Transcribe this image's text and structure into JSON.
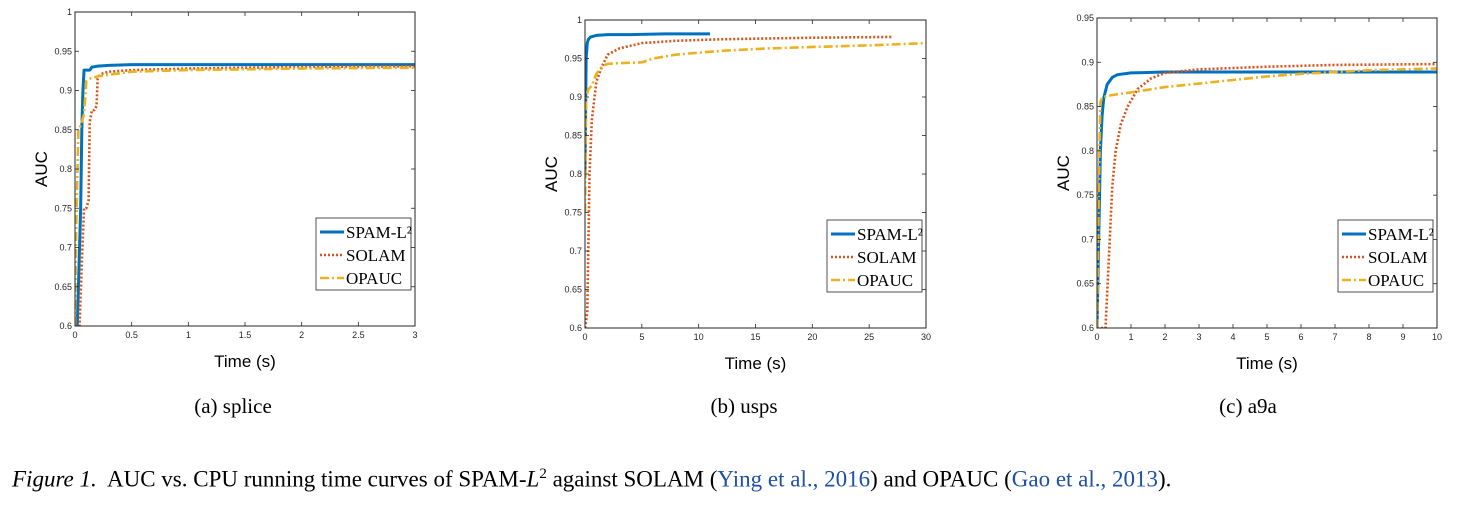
{
  "colors": {
    "spam": "#0072BD",
    "solam": "#D95319",
    "opauc": "#EDB120"
  },
  "legend_labels": [
    "SPAM-L²",
    "SOLAM",
    "OPAUC"
  ],
  "chart_data": [
    {
      "type": "line",
      "subcaption": "(a)  splice",
      "xlabel": "Time (s)",
      "ylabel": "AUC",
      "xlim": [
        0,
        3
      ],
      "ylim": [
        0.6,
        1
      ],
      "xticks": [
        0,
        0.5,
        1,
        1.5,
        2,
        2.5,
        3
      ],
      "xtick_labels": [
        "0",
        "0.5",
        "1",
        "1.5",
        "2",
        "2.5",
        "3"
      ],
      "yticks": [
        0.6,
        0.65,
        0.7,
        0.75,
        0.8,
        0.85,
        0.9,
        0.95,
        1
      ],
      "ytick_labels": [
        "0.6",
        "0.65",
        "0.7",
        "0.75",
        "0.8",
        "0.85",
        "0.9",
        "0.95",
        "1"
      ],
      "grid": false,
      "legend_position": "bottom-right",
      "series": [
        {
          "name": "SPAM-L²",
          "style": "solid",
          "x": [
            0,
            0.02,
            0.05,
            0.06,
            0.07,
            0.08,
            0.13,
            0.15,
            0.16,
            0.2,
            0.3,
            0.5,
            1,
            2,
            3
          ],
          "y": [
            0.6,
            0.6,
            0.75,
            0.85,
            0.9,
            0.926,
            0.926,
            0.93,
            0.93,
            0.931,
            0.932,
            0.933,
            0.933,
            0.933,
            0.933
          ]
        },
        {
          "name": "SOLAM",
          "style": "dotted",
          "x": [
            0,
            0.04,
            0.06,
            0.08,
            0.1,
            0.12,
            0.13,
            0.15,
            0.17,
            0.19,
            0.2,
            0.22,
            0.25,
            0.3,
            0.5,
            1,
            2,
            3
          ],
          "y": [
            0.6,
            0.6,
            0.68,
            0.75,
            0.75,
            0.76,
            0.86,
            0.875,
            0.875,
            0.88,
            0.915,
            0.92,
            0.922,
            0.924,
            0.926,
            0.928,
            0.93,
            0.931
          ]
        },
        {
          "name": "OPAUC",
          "style": "dashdot",
          "x": [
            0,
            0.01,
            0.03,
            0.05,
            0.06,
            0.08,
            0.1,
            0.13,
            0.2,
            0.3,
            0.5,
            1,
            2,
            3
          ],
          "y": [
            0.6,
            0.72,
            0.85,
            0.855,
            0.86,
            0.87,
            0.912,
            0.915,
            0.918,
            0.92,
            0.924,
            0.926,
            0.928,
            0.929
          ]
        }
      ]
    },
    {
      "type": "line",
      "subcaption": "(b)  usps",
      "xlabel": "Time (s)",
      "ylabel": "AUC",
      "xlim": [
        0,
        30
      ],
      "ylim": [
        0.6,
        1
      ],
      "xticks": [
        0,
        5,
        10,
        15,
        20,
        25,
        30
      ],
      "xtick_labels": [
        "0",
        "5",
        "10",
        "15",
        "20",
        "25",
        "30"
      ],
      "yticks": [
        0.6,
        0.65,
        0.7,
        0.75,
        0.8,
        0.85,
        0.9,
        0.95,
        1
      ],
      "ytick_labels": [
        "0.6",
        "0.65",
        "0.7",
        "0.75",
        "0.8",
        "0.85",
        "0.9",
        "0.95",
        "1"
      ],
      "grid": false,
      "legend_position": "bottom-right",
      "series": [
        {
          "name": "SPAM-L²",
          "style": "solid",
          "x": [
            0,
            0.1,
            0.2,
            0.3,
            0.5,
            1,
            2,
            4,
            7,
            11
          ],
          "y": [
            0.8,
            0.95,
            0.97,
            0.975,
            0.978,
            0.98,
            0.981,
            0.981,
            0.982,
            0.982
          ]
        },
        {
          "name": "SOLAM",
          "style": "dotted",
          "x": [
            0,
            0.2,
            0.4,
            0.6,
            1,
            1.5,
            2,
            3,
            5,
            8,
            12,
            20,
            27
          ],
          "y": [
            0.6,
            0.62,
            0.8,
            0.87,
            0.92,
            0.94,
            0.955,
            0.963,
            0.97,
            0.973,
            0.975,
            0.977,
            0.978
          ]
        },
        {
          "name": "OPAUC",
          "style": "dashdot",
          "x": [
            0,
            0.1,
            0.3,
            0.6,
            1,
            1.5,
            2,
            3,
            5,
            6,
            8,
            12,
            16,
            20,
            25,
            30
          ],
          "y": [
            0.75,
            0.9,
            0.91,
            0.915,
            0.93,
            0.94,
            0.943,
            0.944,
            0.945,
            0.95,
            0.955,
            0.96,
            0.963,
            0.965,
            0.967,
            0.97
          ]
        }
      ]
    },
    {
      "type": "line",
      "subcaption": "(c)  a9a",
      "xlabel": "Time (s)",
      "ylabel": "AUC",
      "xlim": [
        0,
        10
      ],
      "ylim": [
        0.6,
        0.95
      ],
      "xticks": [
        0,
        1,
        2,
        3,
        4,
        5,
        6,
        7,
        8,
        9,
        10
      ],
      "xtick_labels": [
        "0",
        "1",
        "2",
        "3",
        "4",
        "5",
        "6",
        "7",
        "8",
        "9",
        "10"
      ],
      "yticks": [
        0.6,
        0.65,
        0.7,
        0.75,
        0.8,
        0.85,
        0.9,
        0.95
      ],
      "ytick_labels": [
        "0.6",
        "0.65",
        "0.7",
        "0.75",
        "0.8",
        "0.85",
        "0.9",
        "0.95"
      ],
      "grid": false,
      "legend_position": "bottom-right",
      "series": [
        {
          "name": "SPAM-L²",
          "style": "solid",
          "x": [
            0,
            0.05,
            0.1,
            0.15,
            0.2,
            0.3,
            0.45,
            0.6,
            1,
            2,
            5,
            10
          ],
          "y": [
            0.6,
            0.7,
            0.8,
            0.84,
            0.86,
            0.875,
            0.883,
            0.886,
            0.888,
            0.889,
            0.889,
            0.889
          ]
        },
        {
          "name": "SOLAM",
          "style": "dotted",
          "x": [
            0,
            0.25,
            0.35,
            0.45,
            0.55,
            0.7,
            0.9,
            1.2,
            1.6,
            2,
            3,
            5,
            7,
            10
          ],
          "y": [
            0.6,
            0.6,
            0.68,
            0.76,
            0.8,
            0.83,
            0.85,
            0.87,
            0.882,
            0.888,
            0.892,
            0.895,
            0.897,
            0.898
          ]
        },
        {
          "name": "OPAUC",
          "style": "dashdot",
          "x": [
            0,
            0.05,
            0.1,
            0.15,
            0.3,
            0.6,
            1,
            2,
            3,
            4,
            5,
            6,
            7,
            8,
            9,
            10
          ],
          "y": [
            0.6,
            0.75,
            0.855,
            0.86,
            0.862,
            0.864,
            0.866,
            0.872,
            0.876,
            0.88,
            0.884,
            0.887,
            0.889,
            0.891,
            0.892,
            0.893
          ]
        }
      ]
    }
  ],
  "caption": {
    "label": "Figure 1.",
    "text1": "AUC vs. CPU running time curves of SPAM-",
    "math": "L",
    "sup": "2",
    "text2": " against SOLAM (",
    "cite1": "Ying et al., 2016",
    "text3": ") and OPAUC (",
    "cite2": "Gao et al., 2013",
    "text4": ")."
  }
}
